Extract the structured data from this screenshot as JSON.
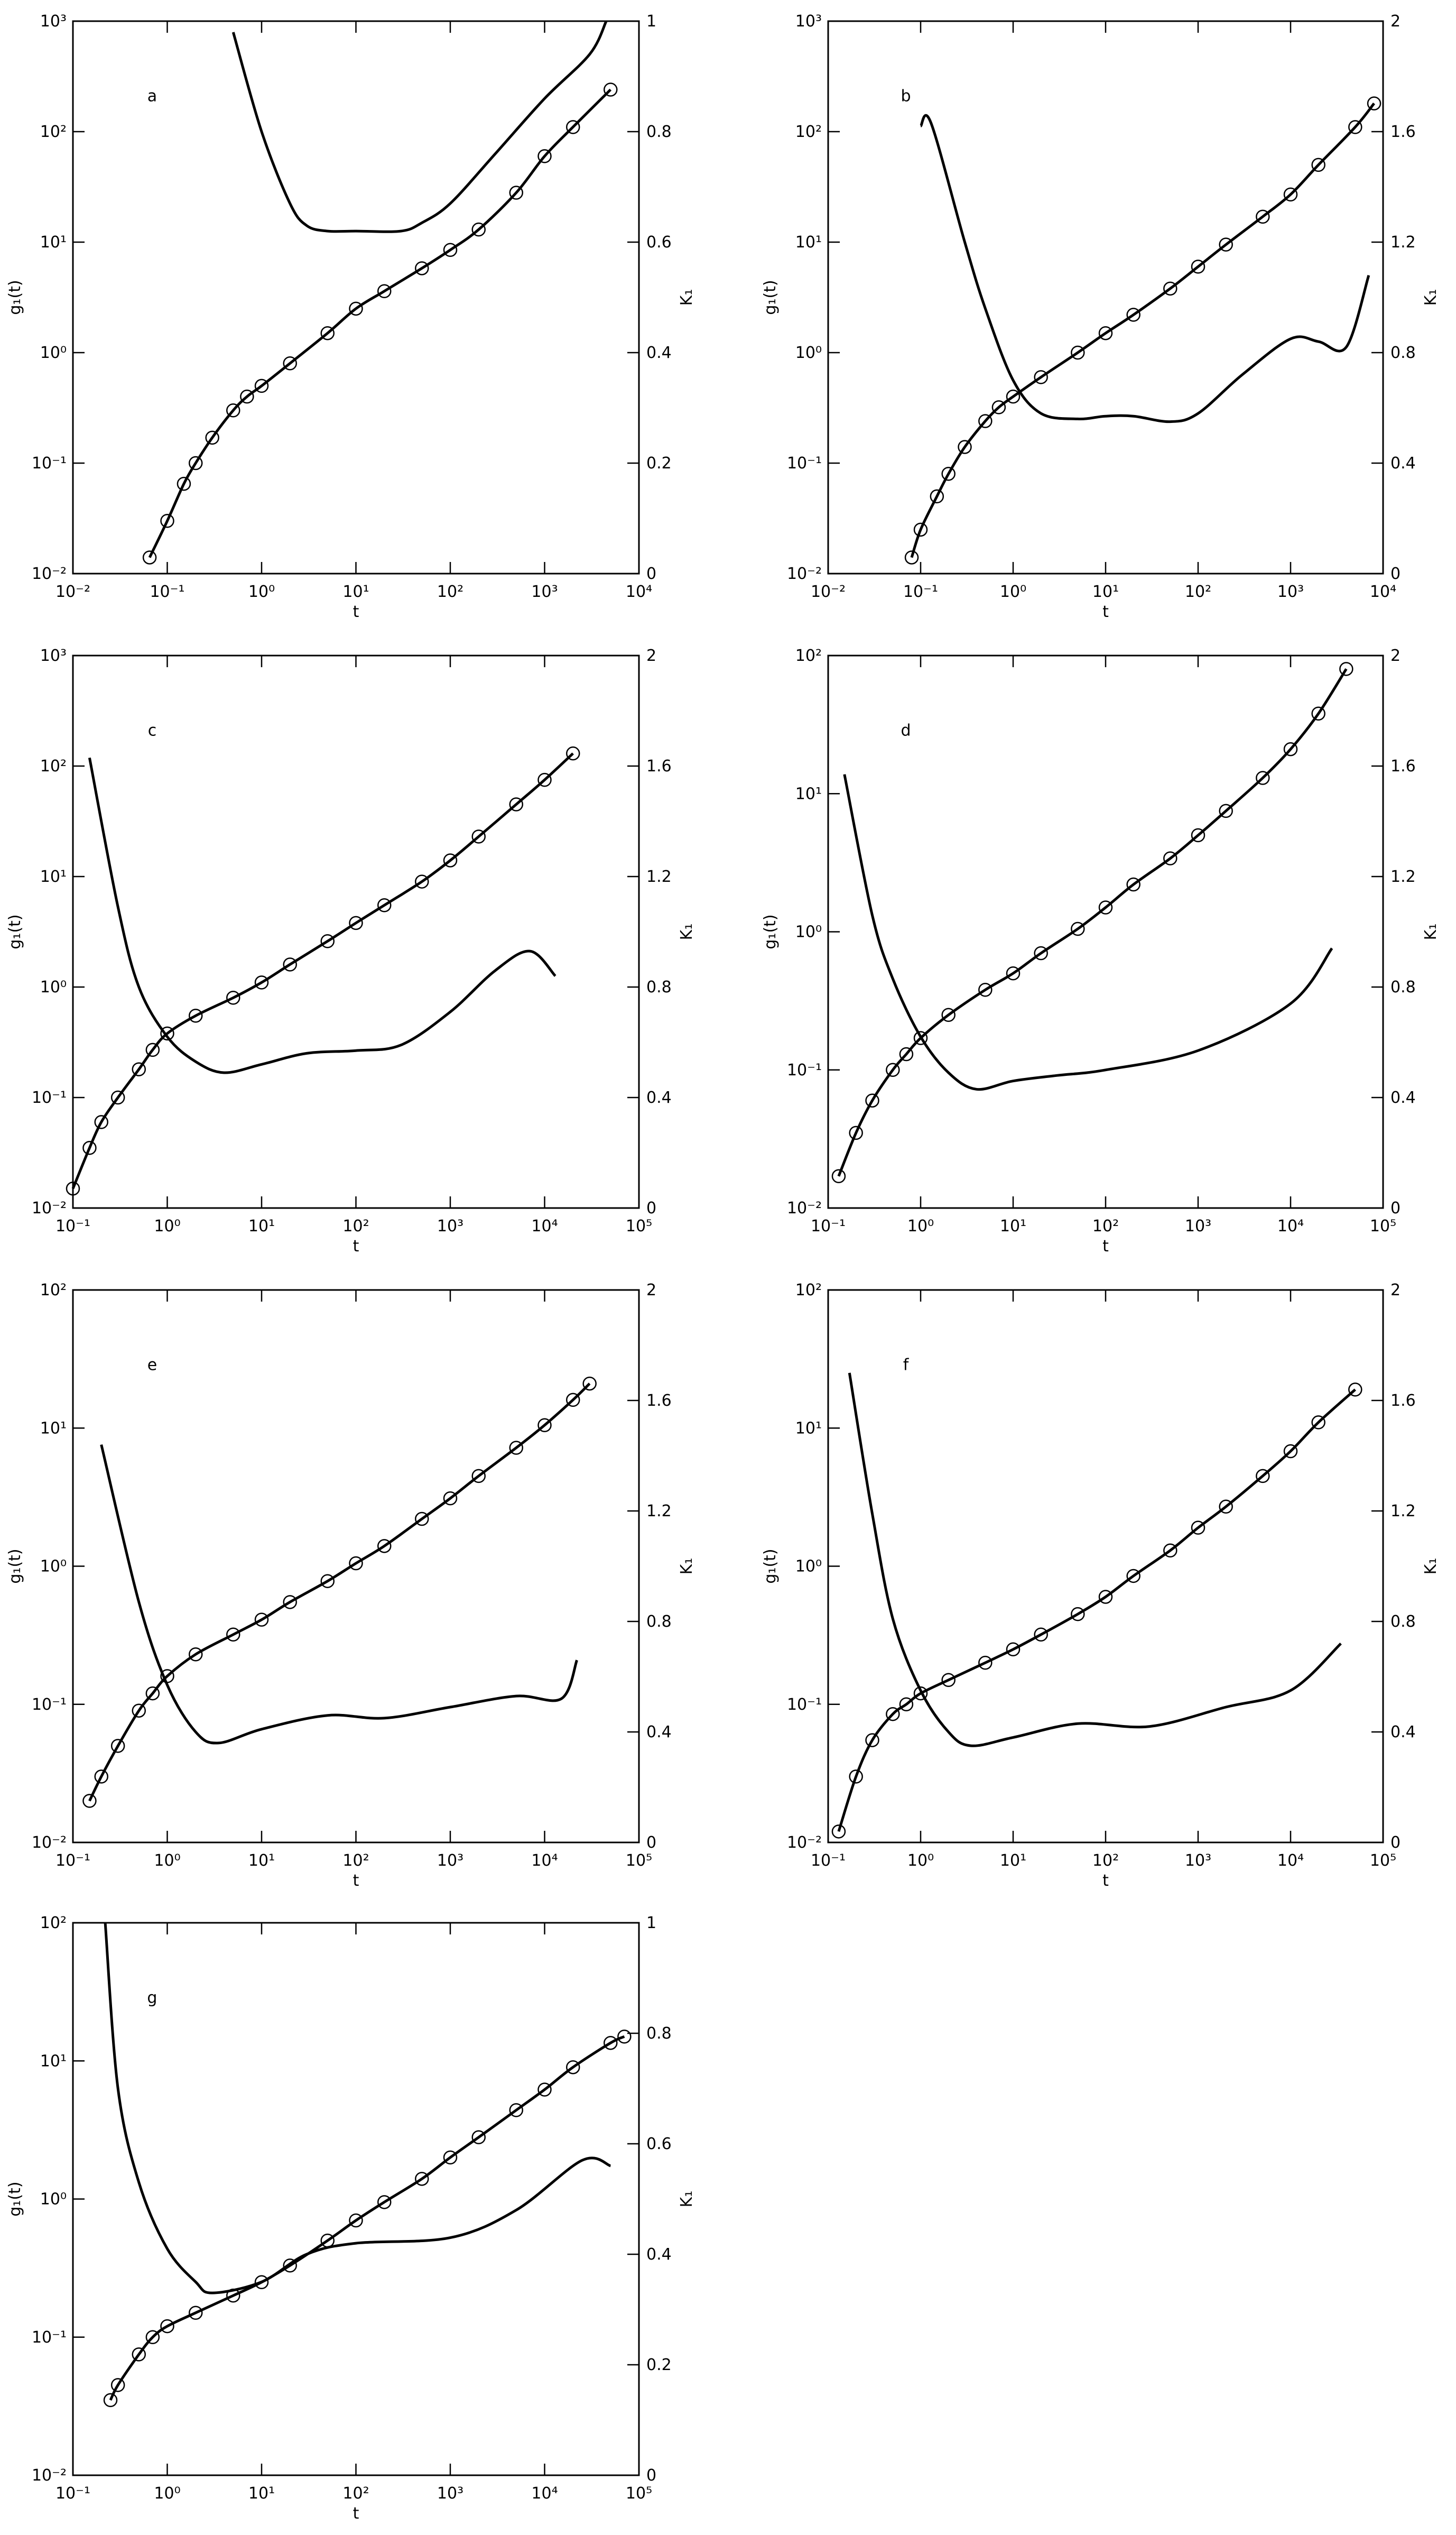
{
  "chart_data": [
    {
      "type": "line",
      "annotation": "a",
      "x_label": "t",
      "y_label": "g₁(t)",
      "y2_label": "K₁",
      "xscale": "log",
      "yscale": "log",
      "xlim": [
        0.01,
        10000
      ],
      "xticks": [
        {
          "value": 0.01,
          "label": "10⁻²"
        },
        {
          "value": 0.1,
          "label": "10⁻¹"
        },
        {
          "value": 1,
          "label": "10⁰"
        },
        {
          "value": 10,
          "label": "10¹"
        },
        {
          "value": 100,
          "label": "10²"
        },
        {
          "value": 1000,
          "label": "10³"
        },
        {
          "value": 10000,
          "label": "10⁴"
        }
      ],
      "ylim": [
        0.01,
        1000
      ],
      "yticks": [
        {
          "value": 0.01,
          "label": "10⁻²"
        },
        {
          "value": 0.1,
          "label": "10⁻¹"
        },
        {
          "value": 1,
          "label": "10⁰"
        },
        {
          "value": 10,
          "label": "10¹"
        },
        {
          "value": 100,
          "label": "10²"
        },
        {
          "value": 1000,
          "label": "10³"
        }
      ],
      "y2lim": [
        0,
        1
      ],
      "y2ticks": [
        0,
        0.2,
        0.4,
        0.6,
        0.8,
        1
      ],
      "series": [
        {
          "color": "#000000",
          "marker": "circle",
          "x": [
            0.065,
            0.1,
            0.15,
            0.2,
            0.3,
            0.5,
            0.7,
            1,
            2,
            5,
            10,
            20,
            50,
            100,
            200,
            500,
            1000,
            2000,
            5000
          ],
          "values": [
            0.014,
            0.03,
            0.065,
            0.1,
            0.17,
            0.3,
            0.4,
            0.5,
            0.8,
            1.5,
            2.5,
            3.6,
            5.8,
            8.5,
            13,
            28,
            60,
            110,
            240
          ]
        },
        {
          "color": "#000000",
          "axis": "y2",
          "x": [
            0.5,
            1,
            2,
            3,
            5,
            10,
            30,
            50,
            100,
            300,
            1000,
            3000,
            4500
          ],
          "values": [
            0.98,
            0.8,
            0.67,
            0.63,
            0.62,
            0.62,
            0.62,
            0.635,
            0.67,
            0.76,
            0.86,
            0.94,
            1.0
          ]
        }
      ]
    },
    {
      "type": "line",
      "annotation": "b",
      "x_label": "t",
      "y_label": "g₁(t)",
      "y2_label": "K₁",
      "xscale": "log",
      "yscale": "log",
      "xlim": [
        0.01,
        10000
      ],
      "xticks": [
        {
          "value": 0.01,
          "label": "10⁻²"
        },
        {
          "value": 0.1,
          "label": "10⁻¹"
        },
        {
          "value": 1,
          "label": "10⁰"
        },
        {
          "value": 10,
          "label": "10¹"
        },
        {
          "value": 100,
          "label": "10²"
        },
        {
          "value": 1000,
          "label": "10³"
        },
        {
          "value": 10000,
          "label": "10⁴"
        }
      ],
      "ylim": [
        0.01,
        1000
      ],
      "yticks": [
        {
          "value": 0.01,
          "label": "10⁻²"
        },
        {
          "value": 0.1,
          "label": "10⁻¹"
        },
        {
          "value": 1,
          "label": "10⁰"
        },
        {
          "value": 10,
          "label": "10¹"
        },
        {
          "value": 100,
          "label": "10²"
        },
        {
          "value": 1000,
          "label": "10³"
        }
      ],
      "y2lim": [
        0,
        2
      ],
      "y2ticks": [
        0,
        0.4,
        0.8,
        1.2,
        1.6,
        2
      ],
      "series": [
        {
          "color": "#000000",
          "marker": "circle",
          "x": [
            0.08,
            0.1,
            0.15,
            0.2,
            0.3,
            0.5,
            0.7,
            1,
            2,
            5,
            10,
            20,
            50,
            100,
            200,
            500,
            1000,
            2000,
            5000,
            8000
          ],
          "values": [
            0.014,
            0.025,
            0.05,
            0.08,
            0.14,
            0.24,
            0.32,
            0.4,
            0.6,
            1.0,
            1.5,
            2.2,
            3.8,
            6,
            9.5,
            17,
            27,
            50,
            110,
            180
          ]
        },
        {
          "color": "#000000",
          "axis": "y2",
          "x": [
            0.1,
            0.13,
            0.3,
            0.5,
            1,
            2,
            5,
            10,
            20,
            50,
            100,
            300,
            1000,
            2000,
            4000,
            7000
          ],
          "values": [
            1.62,
            1.63,
            1.2,
            0.96,
            0.7,
            0.58,
            0.56,
            0.57,
            0.57,
            0.55,
            0.58,
            0.72,
            0.85,
            0.84,
            0.82,
            1.08
          ]
        }
      ]
    },
    {
      "type": "line",
      "annotation": "c",
      "x_label": "t",
      "y_label": "g₁(t)",
      "y2_label": "K₁",
      "xscale": "log",
      "yscale": "log",
      "xlim": [
        0.1,
        100000
      ],
      "xticks": [
        {
          "value": 0.1,
          "label": "10⁻¹"
        },
        {
          "value": 1,
          "label": "10⁰"
        },
        {
          "value": 10,
          "label": "10¹"
        },
        {
          "value": 100,
          "label": "10²"
        },
        {
          "value": 1000,
          "label": "10³"
        },
        {
          "value": 10000,
          "label": "10⁴"
        },
        {
          "value": 100000,
          "label": "10⁵"
        }
      ],
      "ylim": [
        0.01,
        1000
      ],
      "yticks": [
        {
          "value": 0.01,
          "label": "10⁻²"
        },
        {
          "value": 0.1,
          "label": "10⁻¹"
        },
        {
          "value": 1,
          "label": "10⁰"
        },
        {
          "value": 10,
          "label": "10¹"
        },
        {
          "value": 100,
          "label": "10²"
        },
        {
          "value": 1000,
          "label": "10³"
        }
      ],
      "y2lim": [
        0,
        2
      ],
      "y2ticks": [
        0,
        0.4,
        0.8,
        1.2,
        1.6,
        2
      ],
      "series": [
        {
          "color": "#000000",
          "marker": "circle",
          "x": [
            0.1,
            0.15,
            0.2,
            0.3,
            0.5,
            0.7,
            1,
            2,
            5,
            10,
            20,
            50,
            100,
            200,
            500,
            1000,
            2000,
            5000,
            10000,
            20000
          ],
          "values": [
            0.015,
            0.035,
            0.06,
            0.1,
            0.18,
            0.27,
            0.38,
            0.55,
            0.8,
            1.1,
            1.6,
            2.6,
            3.8,
            5.5,
            9,
            14,
            23,
            45,
            75,
            130
          ]
        },
        {
          "color": "#000000",
          "axis": "y2",
          "x": [
            0.15,
            0.3,
            0.5,
            1,
            2,
            4,
            10,
            30,
            100,
            300,
            1000,
            3000,
            7000,
            13000
          ],
          "values": [
            1.63,
            1.09,
            0.8,
            0.62,
            0.53,
            0.49,
            0.52,
            0.56,
            0.57,
            0.59,
            0.71,
            0.86,
            0.93,
            0.84
          ]
        }
      ]
    },
    {
      "type": "line",
      "annotation": "d",
      "x_label": "t",
      "y_label": "g₁(t)",
      "y2_label": "K₁",
      "xscale": "log",
      "yscale": "log",
      "xlim": [
        0.1,
        100000
      ],
      "xticks": [
        {
          "value": 0.1,
          "label": "10⁻¹"
        },
        {
          "value": 1,
          "label": "10⁰"
        },
        {
          "value": 10,
          "label": "10¹"
        },
        {
          "value": 100,
          "label": "10²"
        },
        {
          "value": 1000,
          "label": "10³"
        },
        {
          "value": 10000,
          "label": "10⁴"
        },
        {
          "value": 100000,
          "label": "10⁵"
        }
      ],
      "ylim": [
        0.01,
        100
      ],
      "yticks": [
        {
          "value": 0.01,
          "label": "10⁻²"
        },
        {
          "value": 0.1,
          "label": "10⁻¹"
        },
        {
          "value": 1,
          "label": "10⁰"
        },
        {
          "value": 10,
          "label": "10¹"
        },
        {
          "value": 100,
          "label": "10²"
        }
      ],
      "y2lim": [
        0,
        2
      ],
      "y2ticks": [
        0,
        0.4,
        0.8,
        1.2,
        1.6,
        2
      ],
      "series": [
        {
          "color": "#000000",
          "marker": "circle",
          "x": [
            0.13,
            0.2,
            0.3,
            0.5,
            0.7,
            1,
            2,
            5,
            10,
            20,
            50,
            100,
            200,
            500,
            1000,
            2000,
            5000,
            10000,
            20000,
            40000
          ],
          "values": [
            0.017,
            0.035,
            0.06,
            0.1,
            0.13,
            0.17,
            0.25,
            0.38,
            0.5,
            0.7,
            1.05,
            1.5,
            2.2,
            3.4,
            5,
            7.5,
            13,
            21,
            38,
            80
          ]
        },
        {
          "color": "#000000",
          "axis": "y2",
          "x": [
            0.15,
            0.3,
            0.5,
            1,
            2,
            4,
            10,
            30,
            100,
            1000,
            10000,
            28000
          ],
          "values": [
            1.57,
            1.06,
            0.83,
            0.62,
            0.49,
            0.43,
            0.46,
            0.48,
            0.5,
            0.57,
            0.74,
            0.94
          ]
        }
      ]
    },
    {
      "type": "line",
      "annotation": "e",
      "x_label": "t",
      "y_label": "g₁(t)",
      "y2_label": "K₁",
      "xscale": "log",
      "yscale": "log",
      "xlim": [
        0.1,
        100000
      ],
      "xticks": [
        {
          "value": 0.1,
          "label": "10⁻¹"
        },
        {
          "value": 1,
          "label": "10⁰"
        },
        {
          "value": 10,
          "label": "10¹"
        },
        {
          "value": 100,
          "label": "10²"
        },
        {
          "value": 1000,
          "label": "10³"
        },
        {
          "value": 10000,
          "label": "10⁴"
        },
        {
          "value": 100000,
          "label": "10⁵"
        }
      ],
      "ylim": [
        0.01,
        100
      ],
      "yticks": [
        {
          "value": 0.01,
          "label": "10⁻²"
        },
        {
          "value": 0.1,
          "label": "10⁻¹"
        },
        {
          "value": 1,
          "label": "10⁰"
        },
        {
          "value": 10,
          "label": "10¹"
        },
        {
          "value": 100,
          "label": "10²"
        }
      ],
      "y2lim": [
        0,
        2
      ],
      "y2ticks": [
        0,
        0.4,
        0.8,
        1.2,
        1.6,
        2
      ],
      "series": [
        {
          "color": "#000000",
          "marker": "circle",
          "x": [
            0.15,
            0.2,
            0.3,
            0.5,
            0.7,
            1,
            2,
            5,
            10,
            20,
            50,
            100,
            200,
            500,
            1000,
            2000,
            5000,
            10000,
            20000,
            30000
          ],
          "values": [
            0.02,
            0.03,
            0.05,
            0.09,
            0.12,
            0.16,
            0.23,
            0.32,
            0.41,
            0.55,
            0.78,
            1.05,
            1.4,
            2.2,
            3.1,
            4.5,
            7.2,
            10.5,
            16,
            21
          ]
        },
        {
          "color": "#000000",
          "axis": "y2",
          "x": [
            0.2,
            0.5,
            1,
            2,
            3.5,
            10,
            50,
            200,
            1000,
            5000,
            15000,
            22000
          ],
          "values": [
            1.44,
            0.87,
            0.57,
            0.4,
            0.36,
            0.41,
            0.46,
            0.45,
            0.49,
            0.53,
            0.52,
            0.66
          ]
        }
      ]
    },
    {
      "type": "line",
      "annotation": "f",
      "x_label": "t",
      "y_label": "g₁(t)",
      "y2_label": "K₁",
      "xscale": "log",
      "yscale": "log",
      "xlim": [
        0.1,
        100000
      ],
      "xticks": [
        {
          "value": 0.1,
          "label": "10⁻¹"
        },
        {
          "value": 1,
          "label": "10⁰"
        },
        {
          "value": 10,
          "label": "10¹"
        },
        {
          "value": 100,
          "label": "10²"
        },
        {
          "value": 1000,
          "label": "10³"
        },
        {
          "value": 10000,
          "label": "10⁴"
        },
        {
          "value": 100000,
          "label": "10⁵"
        }
      ],
      "ylim": [
        0.01,
        100
      ],
      "yticks": [
        {
          "value": 0.01,
          "label": "10⁻²"
        },
        {
          "value": 0.1,
          "label": "10⁻¹"
        },
        {
          "value": 1,
          "label": "10⁰"
        },
        {
          "value": 10,
          "label": "10¹"
        },
        {
          "value": 100,
          "label": "10²"
        }
      ],
      "y2lim": [
        0,
        2
      ],
      "y2ticks": [
        0,
        0.4,
        0.8,
        1.2,
        1.6,
        2
      ],
      "series": [
        {
          "color": "#000000",
          "marker": "circle",
          "x": [
            0.13,
            0.2,
            0.3,
            0.5,
            0.7,
            1,
            2,
            5,
            10,
            20,
            50,
            100,
            200,
            500,
            1000,
            2000,
            5000,
            10000,
            20000,
            50000
          ],
          "values": [
            0.012,
            0.03,
            0.055,
            0.085,
            0.1,
            0.12,
            0.15,
            0.2,
            0.25,
            0.32,
            0.45,
            0.6,
            0.85,
            1.3,
            1.9,
            2.7,
            4.5,
            6.8,
            11,
            19
          ]
        },
        {
          "color": "#000000",
          "axis": "y2",
          "x": [
            0.17,
            0.3,
            0.5,
            1,
            2,
            3.5,
            10,
            50,
            300,
            2000,
            10000,
            35000
          ],
          "values": [
            1.7,
            1.19,
            0.81,
            0.55,
            0.4,
            0.35,
            0.38,
            0.43,
            0.42,
            0.49,
            0.55,
            0.72
          ]
        }
      ]
    },
    {
      "type": "line",
      "annotation": "g",
      "x_label": "t",
      "y_label": "g₁(t)",
      "y2_label": "K₁",
      "xscale": "log",
      "yscale": "log",
      "xlim": [
        0.1,
        100000
      ],
      "xticks": [
        {
          "value": 0.1,
          "label": "10⁻¹"
        },
        {
          "value": 1,
          "label": "10⁰"
        },
        {
          "value": 10,
          "label": "10¹"
        },
        {
          "value": 100,
          "label": "10²"
        },
        {
          "value": 1000,
          "label": "10³"
        },
        {
          "value": 10000,
          "label": "10⁴"
        },
        {
          "value": 100000,
          "label": "10⁵"
        }
      ],
      "ylim": [
        0.01,
        100
      ],
      "yticks": [
        {
          "value": 0.01,
          "label": "10⁻²"
        },
        {
          "value": 0.1,
          "label": "10⁻¹"
        },
        {
          "value": 1,
          "label": "10⁰"
        },
        {
          "value": 10,
          "label": "10¹"
        },
        {
          "value": 100,
          "label": "10²"
        }
      ],
      "y2lim": [
        0,
        1
      ],
      "y2ticks": [
        0,
        0.2,
        0.4,
        0.6,
        0.8,
        1
      ],
      "series": [
        {
          "color": "#000000",
          "marker": "circle",
          "x": [
            0.25,
            0.3,
            0.5,
            0.7,
            1,
            2,
            5,
            10,
            20,
            50,
            100,
            200,
            500,
            1000,
            2000,
            5000,
            10000,
            20000,
            50000,
            70000
          ],
          "values": [
            0.035,
            0.045,
            0.075,
            0.1,
            0.12,
            0.15,
            0.2,
            0.25,
            0.33,
            0.5,
            0.7,
            0.95,
            1.4,
            2,
            2.8,
            4.4,
            6.2,
            9,
            13.5,
            15
          ]
        },
        {
          "color": "#000000",
          "axis": "y2",
          "x": [
            0.22,
            0.3,
            0.5,
            1,
            2,
            3,
            10,
            30,
            100,
            1000,
            5000,
            25000,
            50000
          ],
          "values": [
            1.0,
            0.7,
            0.53,
            0.41,
            0.35,
            0.33,
            0.35,
            0.4,
            0.42,
            0.43,
            0.48,
            0.57,
            0.56
          ]
        }
      ]
    }
  ]
}
